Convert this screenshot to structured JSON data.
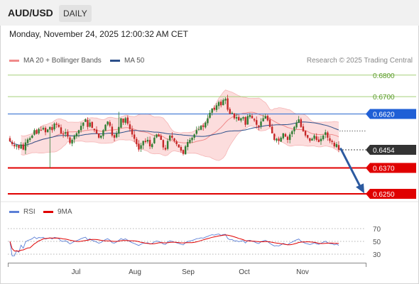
{
  "header": {
    "pair": "AUD/USD",
    "timeframe": "DAILY"
  },
  "timestamp": "Monday, November 24, 2025 12:00:32 AM CET",
  "credit": "Research © 2025 Trading Central",
  "legend_price": [
    {
      "label": "MA 20 + Bollinger Bands",
      "color": "#f08a8a"
    },
    {
      "label": "MA 50",
      "color": "#2c4f8a"
    }
  ],
  "legend_rsi": [
    {
      "label": "RSI",
      "color": "#5b7fd6"
    },
    {
      "label": "9MA",
      "color": "#e00000"
    }
  ],
  "colors": {
    "up_candle": "#2e7d32",
    "down_candle": "#c62828",
    "bollinger_fill": "#fbd7d7",
    "resistance_green": "#a5d07a",
    "pivot_blue": "#4a7fd6",
    "support_red": "#e00000",
    "arrow": "#2c5aa0"
  },
  "chart_data": [
    {
      "type": "candlestick",
      "title": "",
      "x_tick_labels": [
        "Jul",
        "Aug",
        "Sep",
        "Oct",
        "Nov"
      ],
      "ylim": [
        0.621,
        0.685
      ],
      "levels": [
        {
          "value": 0.68,
          "label": "0.6800",
          "kind": "resistance"
        },
        {
          "value": 0.67,
          "label": "0.6700",
          "kind": "resistance"
        },
        {
          "value": 0.662,
          "label": "0.6620",
          "kind": "pivot"
        },
        {
          "value": 0.6454,
          "label": "0.6454",
          "kind": "last"
        },
        {
          "value": 0.637,
          "label": "0.6370",
          "kind": "support"
        },
        {
          "value": 0.625,
          "label": "0.6250",
          "kind": "support"
        }
      ],
      "last_price": 0.6454,
      "projection": {
        "from": 0.6458,
        "to": 0.6262
      },
      "closes": [
        0.6493,
        0.648,
        0.647,
        0.6475,
        0.6462,
        0.6478,
        0.6455,
        0.6488,
        0.6502,
        0.6508,
        0.652,
        0.6545,
        0.6528,
        0.655,
        0.6545,
        0.6555,
        0.6535,
        0.6548,
        0.656,
        0.6545,
        0.6575,
        0.657,
        0.656,
        0.653,
        0.6525,
        0.6535,
        0.6515,
        0.6485,
        0.65,
        0.652,
        0.653,
        0.6545,
        0.6565,
        0.658,
        0.6595,
        0.656,
        0.658,
        0.6555,
        0.6545,
        0.653,
        0.651,
        0.652,
        0.6545,
        0.657,
        0.6585,
        0.6565,
        0.652,
        0.651,
        0.653,
        0.656,
        0.66,
        0.658,
        0.66,
        0.6575,
        0.655,
        0.6525,
        0.6505,
        0.648,
        0.6455,
        0.6475,
        0.6495,
        0.649,
        0.65,
        0.647,
        0.648,
        0.651,
        0.6525,
        0.6515,
        0.65,
        0.6465,
        0.6455,
        0.6495,
        0.652,
        0.651,
        0.6495,
        0.648,
        0.6465,
        0.645,
        0.6435,
        0.647,
        0.649,
        0.65,
        0.651,
        0.6525,
        0.6545,
        0.655,
        0.6565,
        0.656,
        0.658,
        0.66,
        0.6625,
        0.6645,
        0.664,
        0.666,
        0.6675,
        0.666,
        0.6685,
        0.669,
        0.664,
        0.662,
        0.6625,
        0.66,
        0.6605,
        0.659,
        0.66,
        0.6605,
        0.657,
        0.661,
        0.6615,
        0.66,
        0.659,
        0.657,
        0.656,
        0.6585,
        0.66,
        0.661,
        0.659,
        0.656,
        0.653,
        0.65,
        0.6505,
        0.6495,
        0.651,
        0.653,
        0.6515,
        0.65,
        0.6525,
        0.654,
        0.656,
        0.658,
        0.6595,
        0.656,
        0.654,
        0.652,
        0.651,
        0.6495,
        0.6505,
        0.652,
        0.65,
        0.649,
        0.6505,
        0.652,
        0.6535,
        0.651,
        0.6495,
        0.649,
        0.647,
        0.648,
        0.6454
      ]
    },
    {
      "type": "line",
      "title": "",
      "ylim": [
        20,
        80
      ],
      "y_tick_labels": [
        "70",
        "50",
        "30"
      ],
      "y_ticks": [
        70,
        50,
        30
      ],
      "series": [
        {
          "name": "RSI"
        },
        {
          "name": "9MA"
        }
      ]
    }
  ]
}
